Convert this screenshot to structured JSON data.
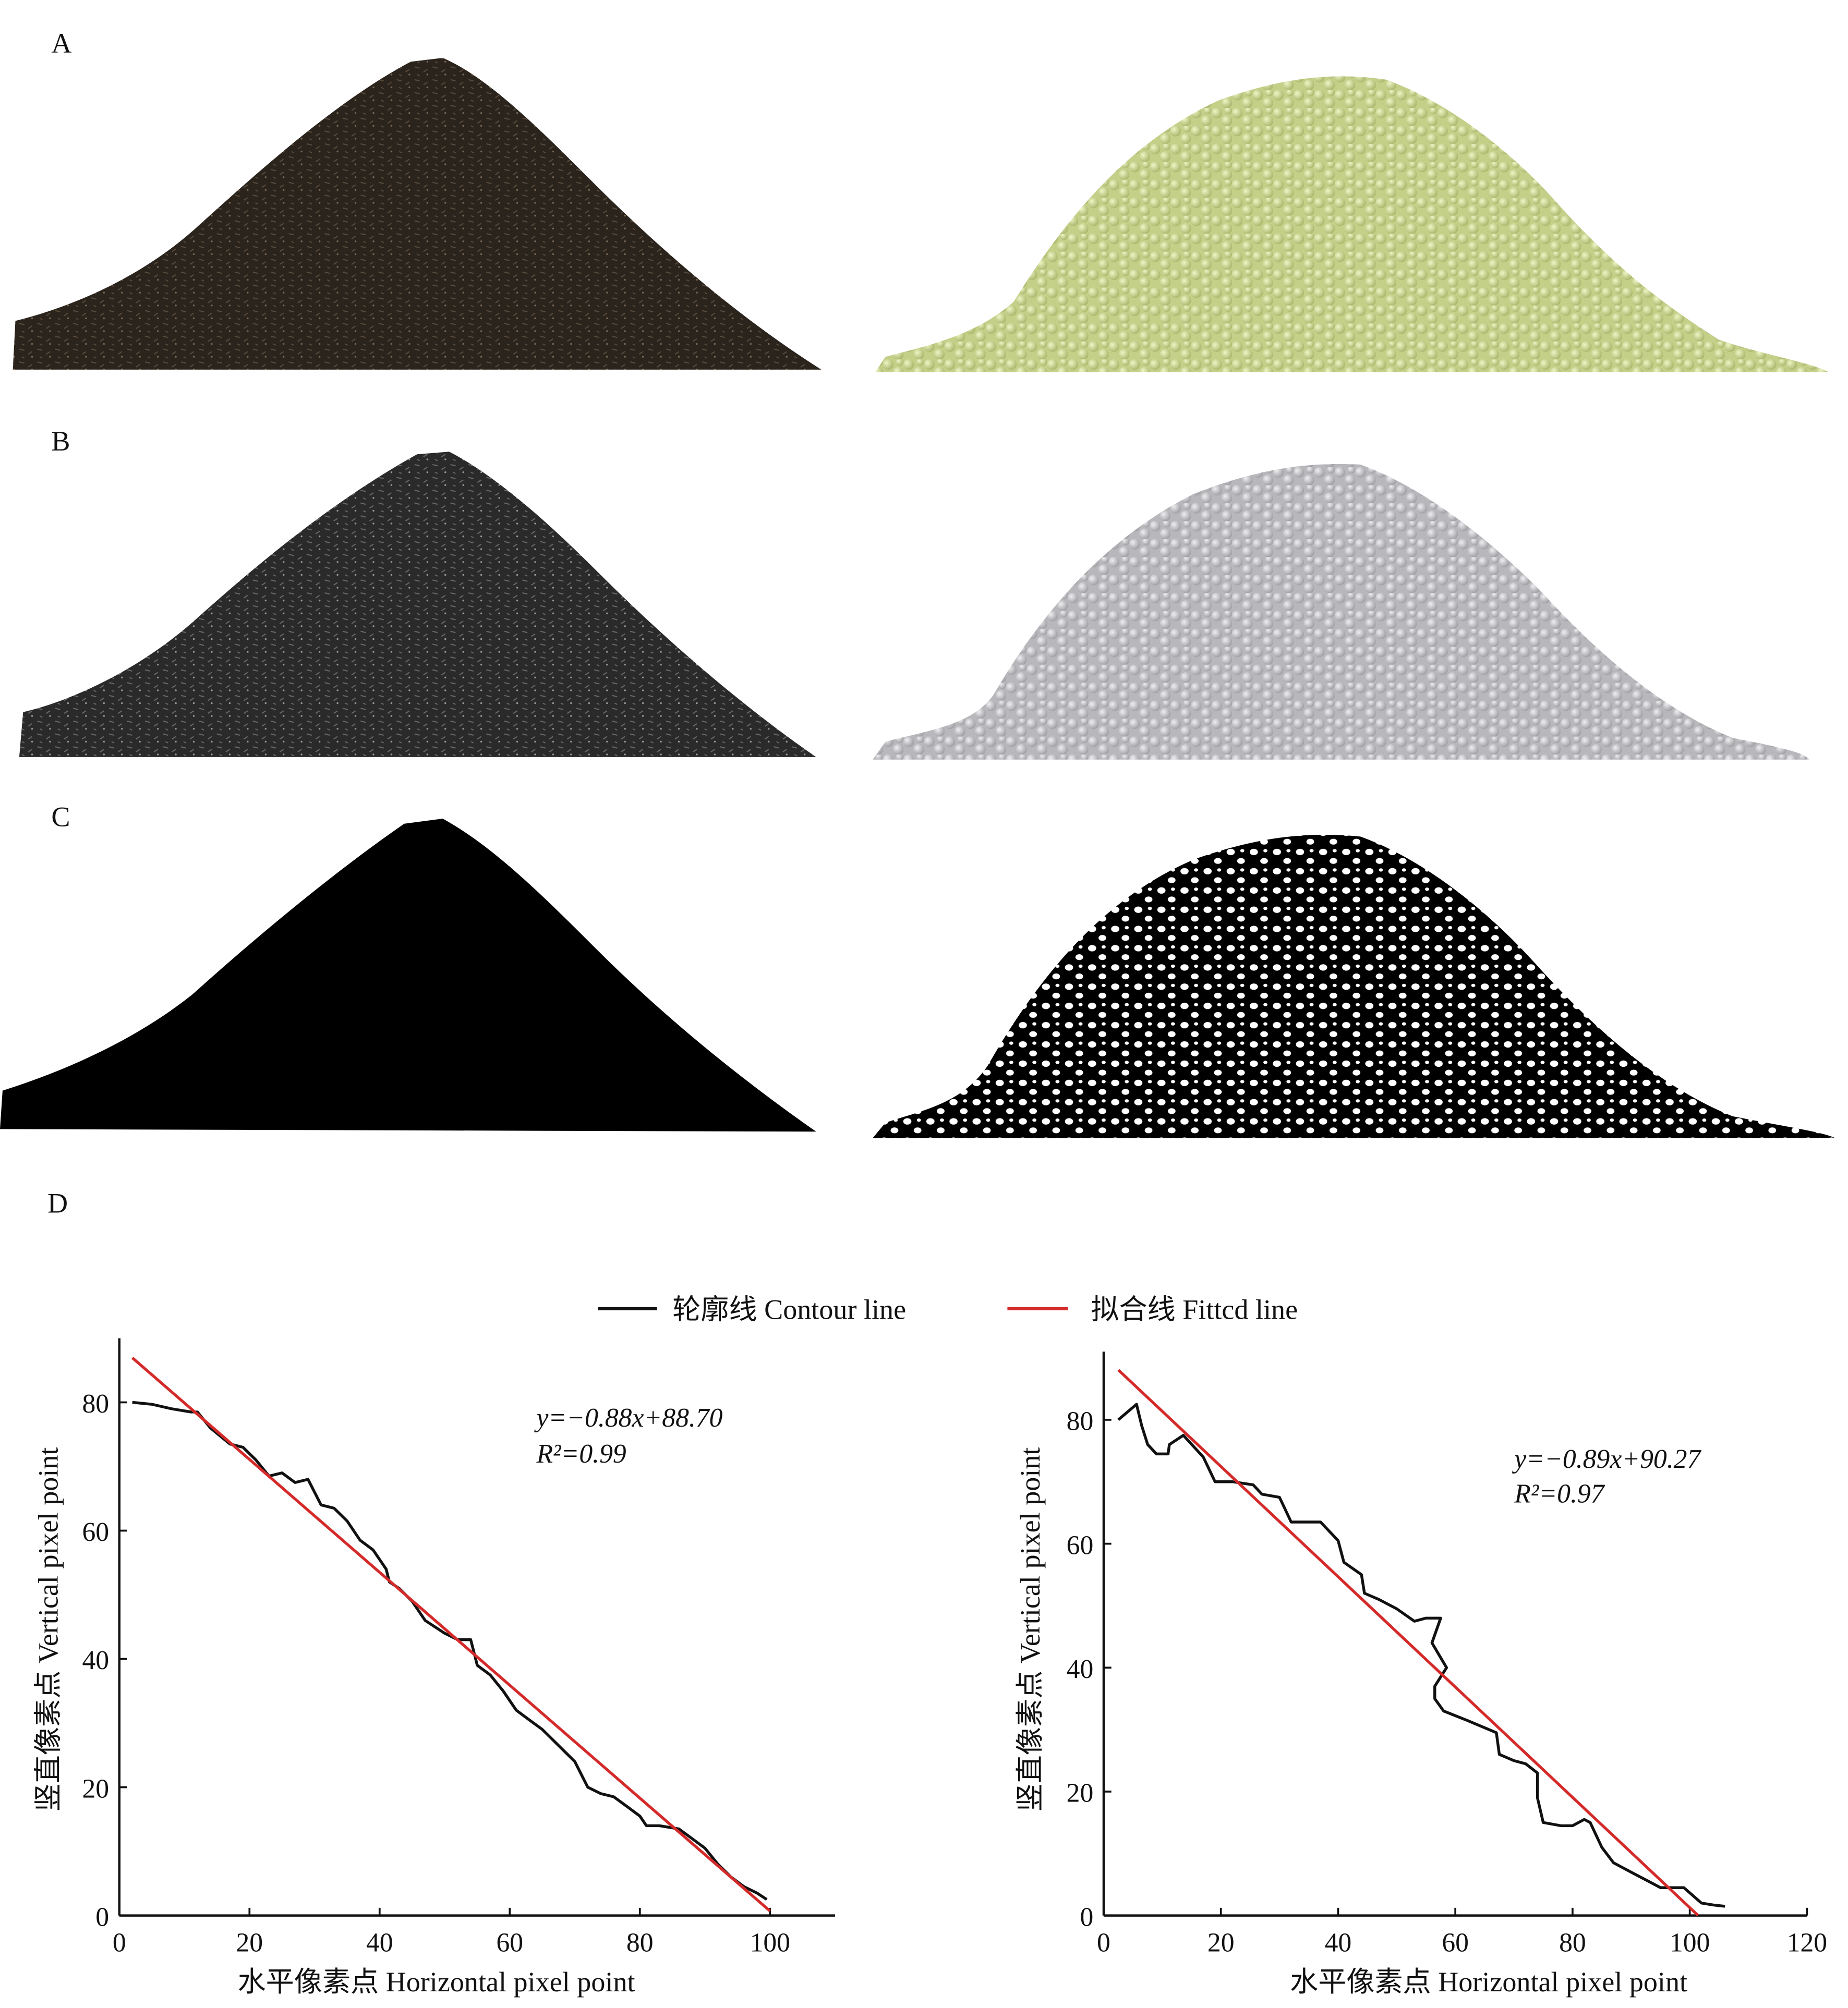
{
  "panels": {
    "a": {
      "label": "A"
    },
    "b": {
      "label": "B"
    },
    "c": {
      "label": "C"
    },
    "d": {
      "label": "D"
    }
  },
  "colors": {
    "contour": "#111111",
    "fitted": "#d42a2a",
    "pile_photo_a": "#2b241d",
    "pile_sim_a": "#d3de96",
    "pile_photo_b": "#2c2c2c",
    "pile_sim_b": "#c9c9cc",
    "binary": "#000000"
  },
  "legend": {
    "contour": "轮廓线  Contour line",
    "fitted": "拟合线  Fittcd line"
  },
  "chart_data": [
    {
      "type": "line",
      "xlabel": "水平像素点  Horizontal pixel point",
      "ylabel": "竖直像素点  Vertical pixel point",
      "xlim": [
        0,
        110
      ],
      "ylim": [
        0,
        90
      ],
      "xticks": [
        0,
        20,
        40,
        60,
        80,
        100
      ],
      "yticks": [
        0,
        20,
        40,
        60,
        80
      ],
      "equation": "y=−0.88x+88.70",
      "r2": "R²=0.99",
      "fit": {
        "slope": -0.88,
        "intercept": 88.7,
        "x_range": [
          2,
          100
        ]
      },
      "series": [
        {
          "name": "轮廓线 Contour line",
          "points": [
            [
              2,
              80
            ],
            [
              5,
              79.7
            ],
            [
              8,
              79
            ],
            [
              11,
              78.5
            ],
            [
              12,
              78.5
            ],
            [
              14,
              76
            ],
            [
              17,
              73.5
            ],
            [
              19,
              73
            ],
            [
              21,
              71
            ],
            [
              23,
              68.5
            ],
            [
              25,
              69
            ],
            [
              27,
              67.5
            ],
            [
              29,
              68
            ],
            [
              31,
              64
            ],
            [
              33,
              63.5
            ],
            [
              35,
              61.5
            ],
            [
              37,
              58.5
            ],
            [
              39,
              57
            ],
            [
              41,
              54
            ],
            [
              41.5,
              52
            ],
            [
              43,
              51
            ],
            [
              45,
              49
            ],
            [
              47,
              46
            ],
            [
              50,
              44
            ],
            [
              52,
              43
            ],
            [
              54,
              43
            ],
            [
              55,
              39
            ],
            [
              57,
              37.5
            ],
            [
              59,
              35
            ],
            [
              61,
              32
            ],
            [
              63,
              30.5
            ],
            [
              65,
              29
            ],
            [
              68,
              26
            ],
            [
              70,
              24
            ],
            [
              72,
              20
            ],
            [
              74,
              19
            ],
            [
              76,
              18.5
            ],
            [
              78,
              17
            ],
            [
              80,
              15.5
            ],
            [
              81,
              14
            ],
            [
              83,
              14
            ],
            [
              86,
              13.5
            ],
            [
              88,
              12
            ],
            [
              90,
              10.5
            ],
            [
              92,
              8
            ],
            [
              94,
              6
            ],
            [
              96,
              4.5
            ],
            [
              98,
              3.5
            ],
            [
              99.5,
              2.5
            ]
          ]
        }
      ]
    },
    {
      "type": "line",
      "xlabel": "水平像素点  Horizontal pixel point",
      "ylabel": "竖直像素点  Vertical pixel point",
      "xlim": [
        0,
        120
      ],
      "ylim": [
        0,
        91
      ],
      "xticks": [
        0,
        20,
        40,
        60,
        80,
        100,
        120
      ],
      "yticks": [
        0,
        20,
        40,
        60,
        80
      ],
      "equation": "y=−0.89x+90.27",
      "r2": "R²=0.97",
      "fit": {
        "slope": -0.89,
        "intercept": 90.27,
        "x_range": [
          2.5,
          101.4
        ]
      },
      "series": [
        {
          "name": "轮廓线 Contour line",
          "points": [
            [
              2.5,
              80
            ],
            [
              5.6,
              82.5
            ],
            [
              6.5,
              79
            ],
            [
              7.5,
              76
            ],
            [
              9,
              74.5
            ],
            [
              11,
              74.5
            ],
            [
              11.2,
              76
            ],
            [
              13.6,
              77.5
            ],
            [
              17,
              74
            ],
            [
              19,
              70
            ],
            [
              22,
              70
            ],
            [
              25.5,
              69.5
            ],
            [
              27,
              68
            ],
            [
              30,
              67.5
            ],
            [
              32,
              63.5
            ],
            [
              37,
              63.5
            ],
            [
              40,
              60.5
            ],
            [
              41,
              57
            ],
            [
              44,
              55
            ],
            [
              44.5,
              52
            ],
            [
              47,
              51
            ],
            [
              50,
              49.5
            ],
            [
              53,
              47.5
            ],
            [
              55,
              48
            ],
            [
              57.5,
              48
            ],
            [
              56,
              44
            ],
            [
              58.5,
              40
            ],
            [
              56.5,
              37
            ],
            [
              56.5,
              35
            ],
            [
              58,
              33
            ],
            [
              62,
              31.5
            ],
            [
              67,
              29.5
            ],
            [
              67.5,
              26
            ],
            [
              70,
              25
            ],
            [
              72,
              24.5
            ],
            [
              74,
              23
            ],
            [
              74,
              19
            ],
            [
              75,
              15
            ],
            [
              78,
              14.5
            ],
            [
              80,
              14.5
            ],
            [
              82,
              15.5
            ],
            [
              83,
              15
            ],
            [
              85,
              11
            ],
            [
              87,
              8.5
            ],
            [
              90,
              7
            ],
            [
              93,
              5.5
            ],
            [
              95,
              4.5
            ],
            [
              99,
              4.5
            ],
            [
              102,
              2
            ],
            [
              104,
              1.7
            ],
            [
              106,
              1.5
            ]
          ]
        }
      ]
    }
  ]
}
